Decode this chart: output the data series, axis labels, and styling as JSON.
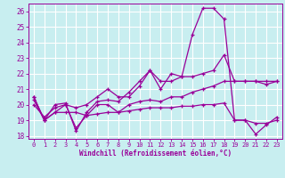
{
  "title": "",
  "xlabel": "Windchill (Refroidissement éolien,°C)",
  "ylabel": "",
  "bg_color": "#c8eef0",
  "grid_color": "#ffffff",
  "line_color": "#990099",
  "ylim": [
    17.8,
    26.5
  ],
  "xlim": [
    -0.5,
    23.5
  ],
  "yticks": [
    18,
    19,
    20,
    21,
    22,
    23,
    24,
    25,
    26
  ],
  "xticks": [
    0,
    1,
    2,
    3,
    4,
    5,
    6,
    7,
    8,
    9,
    10,
    11,
    12,
    13,
    14,
    15,
    16,
    17,
    18,
    19,
    20,
    21,
    22,
    23
  ],
  "lines": [
    {
      "x": [
        0,
        1,
        2,
        3,
        4,
        5,
        6,
        7,
        8,
        9,
        10,
        11,
        12,
        13,
        14,
        15,
        16,
        17,
        18,
        19,
        20,
        21,
        22,
        23
      ],
      "y": [
        20.5,
        19.0,
        20.0,
        20.1,
        18.3,
        19.5,
        20.2,
        20.3,
        20.2,
        20.8,
        21.5,
        22.2,
        21.5,
        21.5,
        21.8,
        24.5,
        26.2,
        26.2,
        25.5,
        19.0,
        19.0,
        18.1,
        18.7,
        19.2
      ]
    },
    {
      "x": [
        0,
        1,
        2,
        3,
        4,
        5,
        6,
        7,
        8,
        9,
        10,
        11,
        12,
        13,
        14,
        15,
        16,
        17,
        18,
        19,
        20,
        21,
        22,
        23
      ],
      "y": [
        20.0,
        19.2,
        19.8,
        20.0,
        19.8,
        20.0,
        20.5,
        21.0,
        20.5,
        20.5,
        21.2,
        22.2,
        21.0,
        22.0,
        21.8,
        21.8,
        22.0,
        22.2,
        23.2,
        21.5,
        21.5,
        21.5,
        21.5,
        21.5
      ]
    },
    {
      "x": [
        0,
        1,
        2,
        3,
        4,
        5,
        6,
        7,
        8,
        9,
        10,
        11,
        12,
        13,
        14,
        15,
        16,
        17,
        18,
        19,
        20,
        21,
        22,
        23
      ],
      "y": [
        20.3,
        19.0,
        19.5,
        19.5,
        19.5,
        19.3,
        19.4,
        19.5,
        19.5,
        19.6,
        19.7,
        19.8,
        19.8,
        19.8,
        19.9,
        19.9,
        20.0,
        20.0,
        20.1,
        19.0,
        19.0,
        18.8,
        18.8,
        19.0
      ]
    },
    {
      "x": [
        0,
        1,
        2,
        3,
        4,
        5,
        6,
        7,
        8,
        9,
        10,
        11,
        12,
        13,
        14,
        15,
        16,
        17,
        18,
        19,
        20,
        21,
        22,
        23
      ],
      "y": [
        20.5,
        19.0,
        19.5,
        20.0,
        18.5,
        19.3,
        20.0,
        20.0,
        19.5,
        20.0,
        20.2,
        20.3,
        20.2,
        20.5,
        20.5,
        20.8,
        21.0,
        21.2,
        21.5,
        21.5,
        21.5,
        21.5,
        21.3,
        21.5
      ]
    }
  ]
}
